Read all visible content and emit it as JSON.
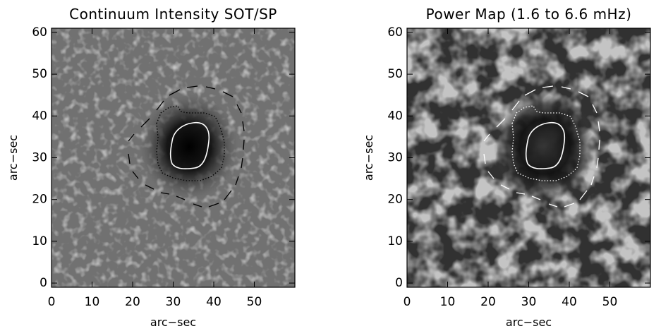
{
  "chart_data": [
    {
      "type": "image",
      "title": "Continuum Intensity SOT/SP",
      "xlabel": "arc−sec",
      "ylabel": "arc−sec",
      "xlim": [
        0,
        60
      ],
      "ylim": [
        -1,
        61
      ],
      "xticks": [
        0,
        10,
        20,
        30,
        40,
        50
      ],
      "yticks": [
        0,
        10,
        20,
        30,
        40,
        50,
        60
      ]
    },
    {
      "type": "image",
      "title": "Power Map (1.6 to 6.6 mHz)",
      "xlabel": "arc−sec",
      "ylabel": "arc−sec",
      "xlim": [
        0,
        60
      ],
      "ylim": [
        -1,
        61
      ],
      "xticks": [
        0,
        10,
        20,
        30,
        40,
        50
      ],
      "yticks": [
        0,
        10,
        20,
        30,
        40,
        50,
        60
      ]
    }
  ]
}
